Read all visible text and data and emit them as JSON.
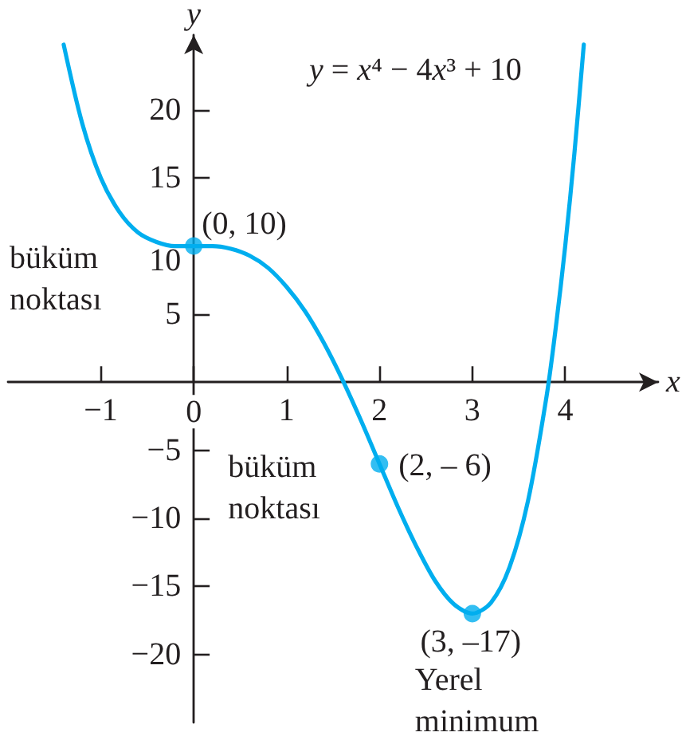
{
  "chart_data": {
    "type": "line",
    "title": "y = x⁴ − 4x³ + 10",
    "xlabel": "x",
    "ylabel": "y",
    "xlim": [
      -2,
      5
    ],
    "ylim": [
      -25,
      25.5
    ],
    "xticks": [
      {
        "value": -1,
        "label": "−1"
      },
      0,
      1,
      2,
      3,
      4
    ],
    "yticks": [
      {
        "value": -20,
        "label": "−20"
      },
      {
        "value": -15,
        "label": "−15"
      },
      {
        "value": -10,
        "label": "−10"
      },
      {
        "value": -5,
        "label": "−5"
      },
      5,
      10,
      15,
      20
    ],
    "marker": "none",
    "line_style": "solid",
    "series": [
      {
        "color": "#00aeef",
        "x": [
          -1.4,
          -1.2,
          -1.0,
          -0.8,
          -0.6,
          -0.4,
          -0.2,
          0,
          0.2,
          0.4,
          0.6,
          0.8,
          1.0,
          1.2,
          1.4,
          1.6,
          1.8,
          2.0,
          2.2,
          2.4,
          2.6,
          2.8,
          3.0,
          3.2,
          3.4,
          3.6,
          3.8,
          3.9,
          4.0,
          4.1,
          4.2
        ],
        "values": [
          24.8,
          19.0,
          15.0,
          12.5,
          11.0,
          10.3,
          10.0,
          10,
          10.0,
          9.8,
          9.3,
          8.4,
          7,
          5.2,
          2.9,
          0.2,
          -2.8,
          -6,
          -9.2,
          -12.1,
          -14.6,
          -16.3,
          -17,
          -16.2,
          -13.6,
          -8.7,
          -1.0,
          4.1,
          10,
          16.9,
          24.8
        ]
      },
      {
        "type": "scatter",
        "color": "#00aeef",
        "marker": "circle",
        "x": [
          0,
          2,
          3
        ],
        "values": [
          10,
          -6,
          -17
        ]
      }
    ],
    "annotations": [
      {
        "text": "(0, 10)",
        "x": 0,
        "y": 10
      },
      "büküm noktası",
      {
        "text": "(2, – 6)",
        "x": 2,
        "y": -6
      },
      {
        "text": "büküm noktası",
        "x": 2,
        "y": -6
      },
      {
        "text": "(3, –17)",
        "x": 3,
        "y": -17
      },
      {
        "text": "Yerel minimum",
        "x": 3,
        "y": -17
      }
    ]
  }
}
